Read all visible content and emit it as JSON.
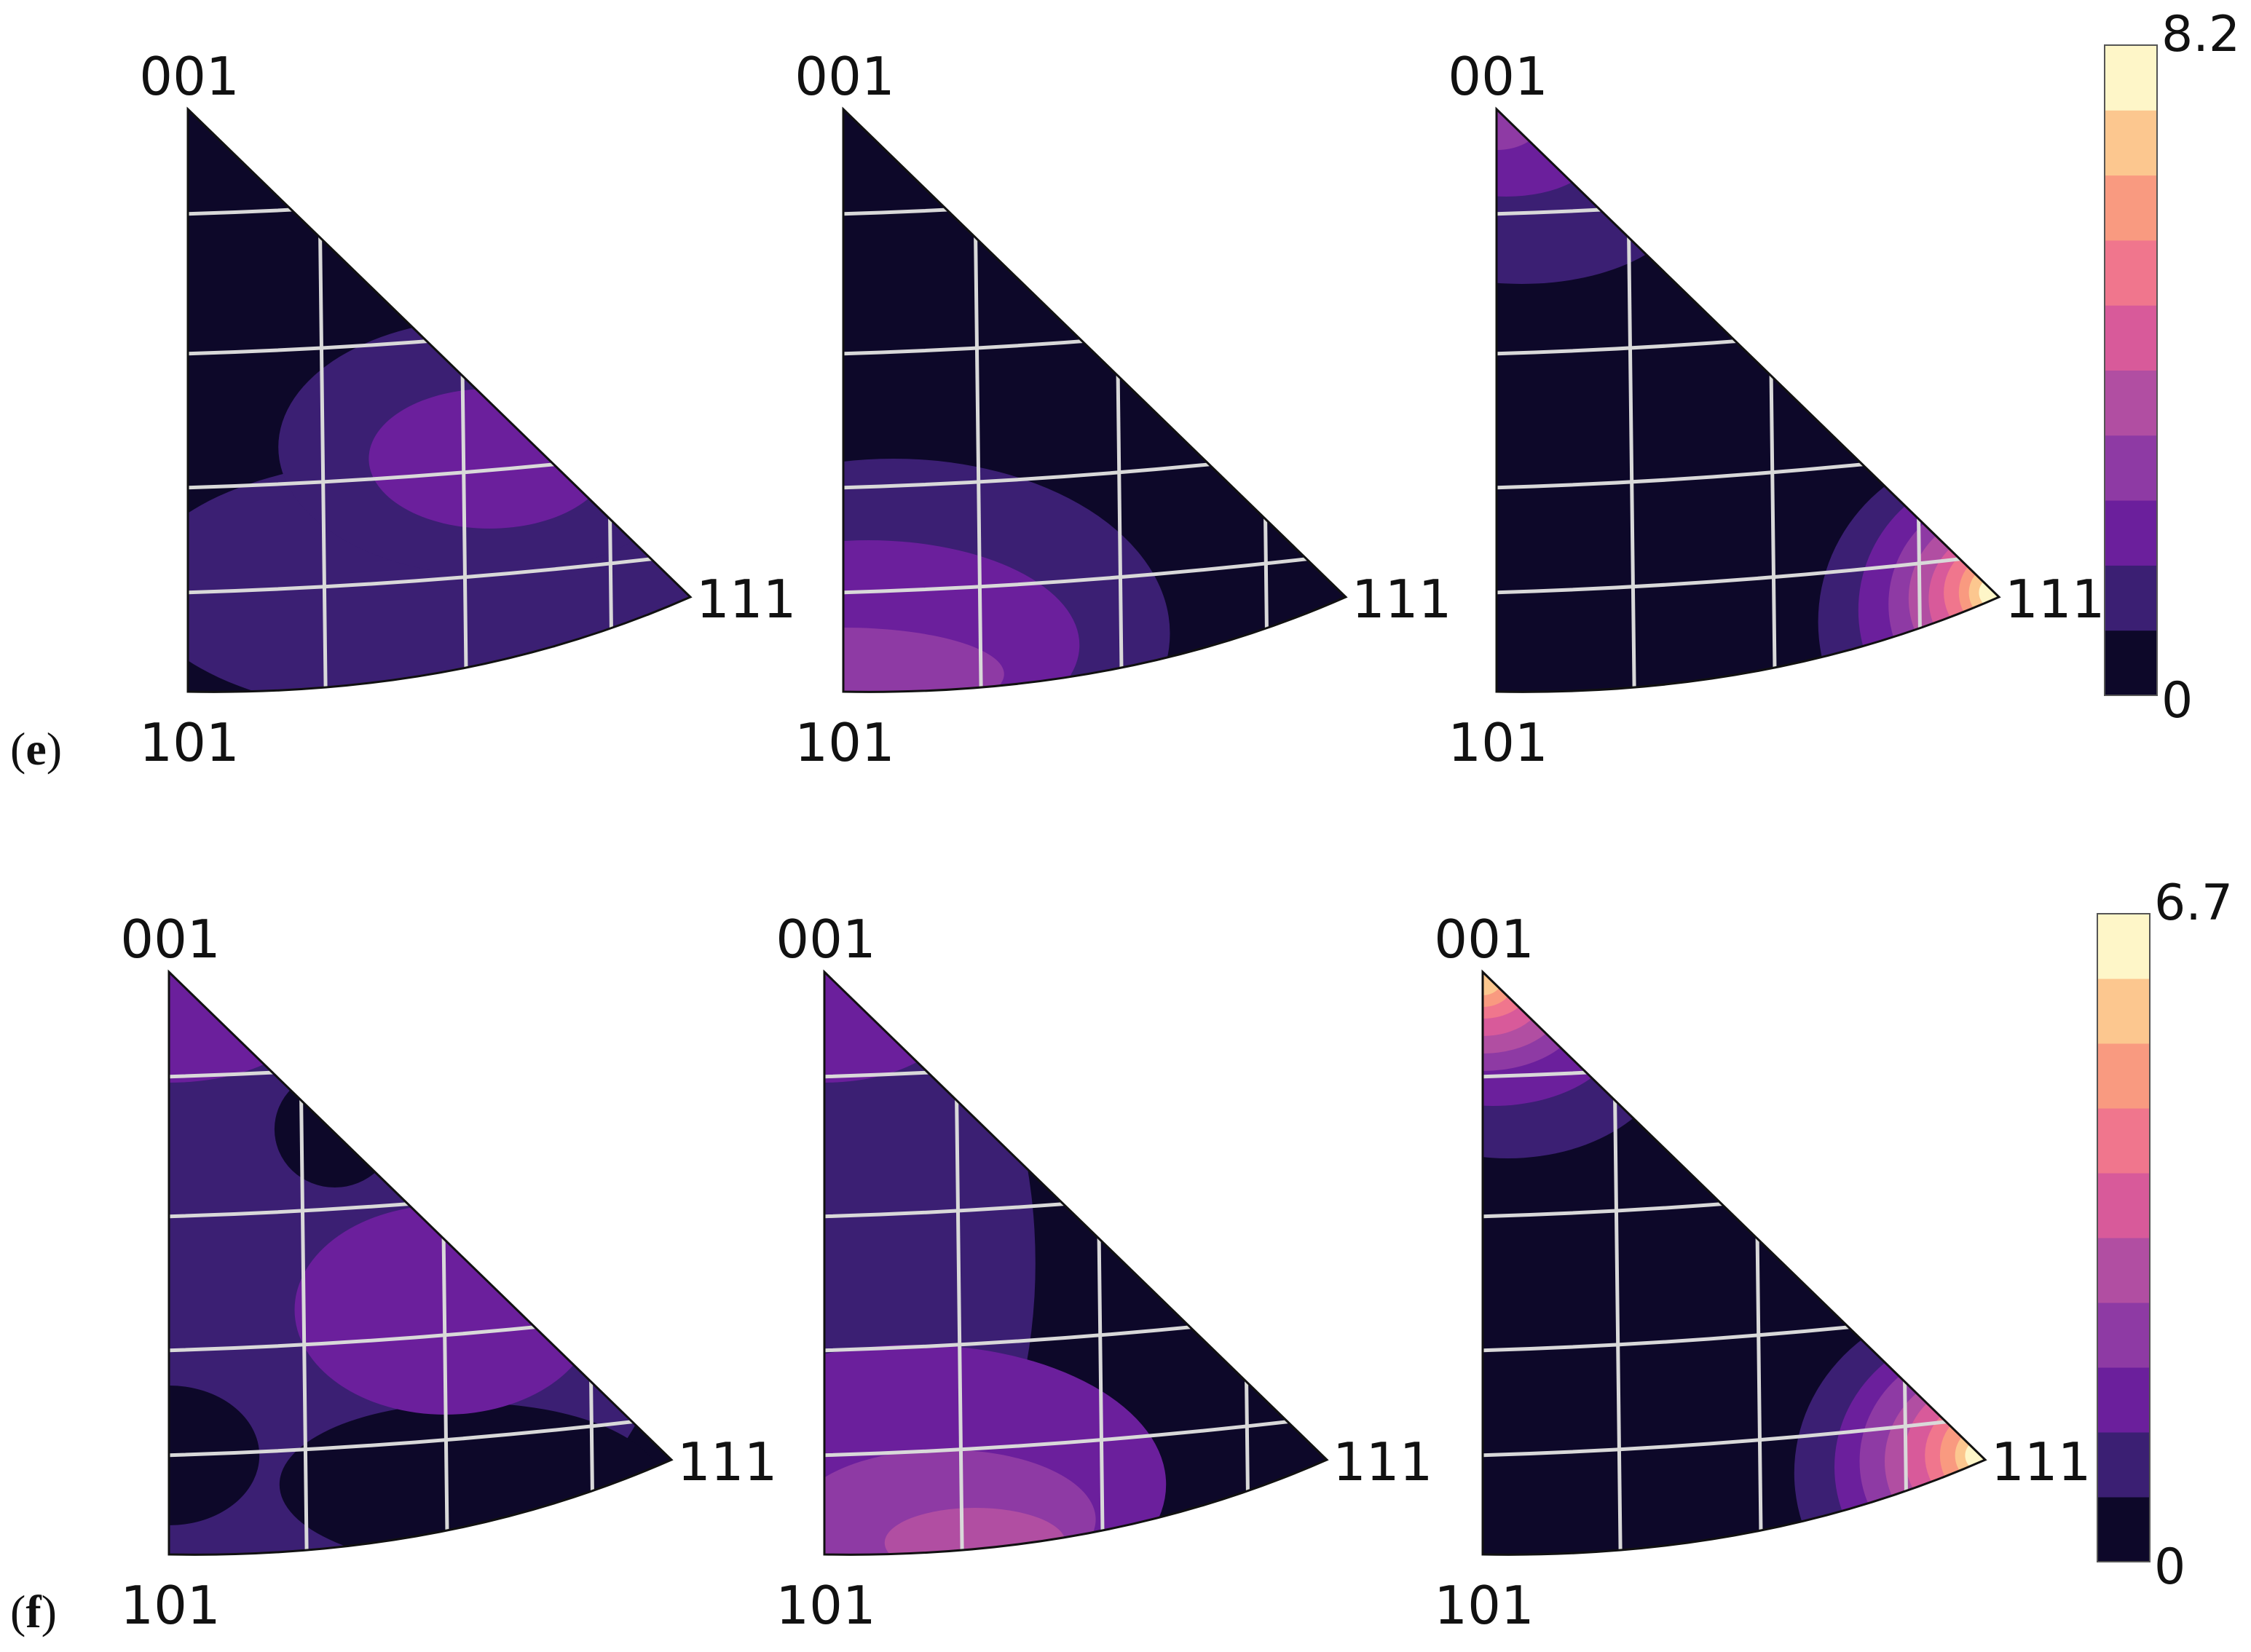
{
  "figure": {
    "rows": [
      {
        "panel_label": "e",
        "colorbar": {
          "min_label": "0",
          "max_label": "8.2",
          "levels": 10
        },
        "plots": [
          {
            "corner_labels": {
              "top": "001",
              "bottom": "101",
              "right": "111"
            },
            "regions": [
              {
                "level": 1,
                "center": [
                  0.45,
                  0.18
                ],
                "radius": [
                  0.55,
                  0.22
                ]
              },
              {
                "level": 1,
                "center": [
                  0.6,
                  0.42
                ],
                "radius": [
                  0.42,
                  0.22
                ]
              },
              {
                "level": 2,
                "center": [
                  0.6,
                  0.4
                ],
                "radius": [
                  0.24,
                  0.12
                ]
              }
            ]
          },
          {
            "corner_labels": {
              "top": "001",
              "bottom": "101",
              "right": "111"
            },
            "regions": [
              {
                "level": 1,
                "center": [
                  0.1,
                  0.1
                ],
                "radius": [
                  0.55,
                  0.3
                ]
              },
              {
                "level": 2,
                "center": [
                  0.05,
                  0.08
                ],
                "radius": [
                  0.42,
                  0.18
                ]
              },
              {
                "level": 3,
                "center": [
                  0.0,
                  0.03
                ],
                "radius": [
                  0.32,
                  0.08
                ]
              }
            ]
          },
          {
            "corner_labels": {
              "top": "001",
              "bottom": "101",
              "right": "111"
            },
            "regions": [
              {
                "level": 1,
                "center": [
                  0.05,
                  0.85
                ],
                "radius": [
                  0.33,
                  0.15
                ]
              },
              {
                "level": 2,
                "center": [
                  0.02,
                  0.93
                ],
                "radius": [
                  0.18,
                  0.08
                ]
              },
              {
                "level": 3,
                "center": [
                  0.0,
                  0.98
                ],
                "radius": [
                  0.09,
                  0.05
                ]
              },
              {
                "level": 1,
                "center": [
                  1.0,
                  0.12
                ],
                "radius": [
                  0.36,
                  0.3
                ]
              },
              {
                "level": 2,
                "center": [
                  1.0,
                  0.14
                ],
                "radius": [
                  0.28,
                  0.24
                ]
              },
              {
                "level": 3,
                "center": [
                  1.0,
                  0.15
                ],
                "radius": [
                  0.22,
                  0.19
                ]
              },
              {
                "level": 4,
                "center": [
                  1.0,
                  0.16
                ],
                "radius": [
                  0.18,
                  0.15
                ]
              },
              {
                "level": 5,
                "center": [
                  1.0,
                  0.16
                ],
                "radius": [
                  0.14,
                  0.12
                ]
              },
              {
                "level": 6,
                "center": [
                  1.0,
                  0.17
                ],
                "radius": [
                  0.11,
                  0.09
                ]
              },
              {
                "level": 7,
                "center": [
                  1.0,
                  0.17
                ],
                "radius": [
                  0.08,
                  0.07
                ]
              },
              {
                "level": 8,
                "center": [
                  1.0,
                  0.17
                ],
                "radius": [
                  0.06,
                  0.05
                ]
              },
              {
                "level": 9,
                "center": [
                  1.0,
                  0.17
                ],
                "radius": [
                  0.04,
                  0.03
                ]
              }
            ]
          }
        ]
      },
      {
        "panel_label": "f",
        "colorbar": {
          "min_label": "0",
          "max_label": "6.7",
          "levels": 10
        },
        "plots": [
          {
            "corner_labels": {
              "top": "001",
              "bottom": "101",
              "right": "111"
            },
            "regions": [
              {
                "level": 1,
                "center": [
                  0.2,
                  0.45
                ],
                "radius": [
                  0.8,
                  0.55
                ]
              },
              {
                "level": 0,
                "center": [
                  0.0,
                  0.17
                ],
                "radius": [
                  0.18,
                  0.12
                ]
              },
              {
                "level": 0,
                "center": [
                  0.6,
                  0.12
                ],
                "radius": [
                  0.38,
                  0.14
                ]
              },
              {
                "level": 0,
                "center": [
                  0.33,
                  0.73
                ],
                "radius": [
                  0.12,
                  0.1
                ]
              },
              {
                "level": 2,
                "center": [
                  0.55,
                  0.42
                ],
                "radius": [
                  0.3,
                  0.18
                ]
              },
              {
                "level": 2,
                "center": [
                  0.0,
                  0.93
                ],
                "radius": [
                  0.28,
                  0.12
                ]
              }
            ]
          },
          {
            "corner_labels": {
              "top": "001",
              "bottom": "101",
              "right": "111"
            },
            "regions": [
              {
                "level": 1,
                "center": [
                  0.0,
                  0.5
                ],
                "radius": [
                  0.42,
                  0.6
                ]
              },
              {
                "level": 2,
                "center": [
                  0.18,
                  0.12
                ],
                "radius": [
                  0.5,
                  0.24
                ]
              },
              {
                "level": 3,
                "center": [
                  0.24,
                  0.06
                ],
                "radius": [
                  0.3,
                  0.12
                ]
              },
              {
                "level": 4,
                "center": [
                  0.3,
                  0.02
                ],
                "radius": [
                  0.18,
                  0.06
                ]
              },
              {
                "level": 2,
                "center": [
                  0.0,
                  0.93
                ],
                "radius": [
                  0.26,
                  0.12
                ]
              }
            ]
          },
          {
            "corner_labels": {
              "top": "001",
              "bottom": "101",
              "right": "111"
            },
            "regions": [
              {
                "level": 1,
                "center": [
                  0.05,
                  0.88
                ],
                "radius": [
                  0.33,
                  0.2
                ]
              },
              {
                "level": 2,
                "center": [
                  0.02,
                  0.91
                ],
                "radius": [
                  0.26,
                  0.14
                ]
              },
              {
                "level": 3,
                "center": [
                  0.0,
                  0.94
                ],
                "radius": [
                  0.2,
                  0.11
                ]
              },
              {
                "level": 4,
                "center": [
                  0.0,
                  0.95
                ],
                "radius": [
                  0.16,
                  0.09
                ]
              },
              {
                "level": 5,
                "center": [
                  0.0,
                  0.96
                ],
                "radius": [
                  0.12,
                  0.07
                ]
              },
              {
                "level": 6,
                "center": [
                  0.0,
                  0.97
                ],
                "radius": [
                  0.09,
                  0.05
                ]
              },
              {
                "level": 7,
                "center": [
                  0.0,
                  0.98
                ],
                "radius": [
                  0.06,
                  0.04
                ]
              },
              {
                "level": 8,
                "center": [
                  0.0,
                  0.99
                ],
                "radius": [
                  0.04,
                  0.03
                ]
              },
              {
                "level": 1,
                "center": [
                  1.0,
                  0.14
                ],
                "radius": [
                  0.38,
                  0.3
                ]
              },
              {
                "level": 2,
                "center": [
                  1.0,
                  0.15
                ],
                "radius": [
                  0.3,
                  0.24
                ]
              },
              {
                "level": 3,
                "center": [
                  1.0,
                  0.16
                ],
                "radius": [
                  0.25,
                  0.2
                ]
              },
              {
                "level": 4,
                "center": [
                  1.0,
                  0.16
                ],
                "radius": [
                  0.2,
                  0.16
                ]
              },
              {
                "level": 5,
                "center": [
                  1.0,
                  0.17
                ],
                "radius": [
                  0.16,
                  0.13
                ]
              },
              {
                "level": 6,
                "center": [
                  1.0,
                  0.17
                ],
                "radius": [
                  0.12,
                  0.1
                ]
              },
              {
                "level": 7,
                "center": [
                  1.0,
                  0.17
                ],
                "radius": [
                  0.09,
                  0.08
                ]
              },
              {
                "level": 8,
                "center": [
                  1.0,
                  0.17
                ],
                "radius": [
                  0.06,
                  0.05
                ]
              },
              {
                "level": 9,
                "center": [
                  1.0,
                  0.17
                ],
                "radius": [
                  0.04,
                  0.03
                ]
              }
            ]
          }
        ]
      }
    ],
    "colors": {
      "levels": [
        "#0d0829",
        "#3b1f73",
        "#6b1f9c",
        "#8e3aa4",
        "#b14ea2",
        "#d85a9a",
        "#f0768d",
        "#f99a80",
        "#fcc78f",
        "#fef6c8"
      ],
      "grid": "#d9d9d9",
      "outline": "#111111"
    }
  }
}
